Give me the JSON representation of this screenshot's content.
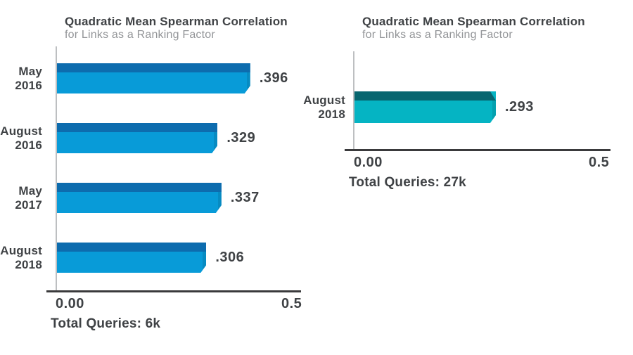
{
  "chart_data": [
    {
      "type": "bar",
      "orientation": "horizontal",
      "title": "Quadratic Mean Spearman Correlation",
      "subtitle": "for Links as a Ranking Factor",
      "categories": [
        "May\n2016",
        "August\n2016",
        "May\n2017",
        "August\n2018"
      ],
      "values": [
        0.396,
        0.329,
        0.337,
        0.306
      ],
      "value_labels": [
        ".396",
        ".329",
        ".337",
        ".306"
      ],
      "xlim": [
        0,
        0.5
      ],
      "tick_labels": [
        "0.00",
        "0.5"
      ],
      "footnote": "Total Queries: 6k",
      "bar_color": "#089bd8",
      "bar_top_color": "#0d6cae",
      "grid": false,
      "legend": false
    },
    {
      "type": "bar",
      "orientation": "horizontal",
      "title": "Quadratic Mean Spearman Correlation",
      "subtitle": "for Links as a Ranking Factor",
      "categories": [
        "August\n2018"
      ],
      "values": [
        0.293
      ],
      "value_labels": [
        ".293"
      ],
      "xlim": [
        0,
        0.5
      ],
      "tick_labels": [
        "0.00",
        "0.5"
      ],
      "footnote": "Total Queries: 27k",
      "bar_color": "#05b4c3",
      "bar_top_color": "#07666f",
      "grid": false,
      "legend": false
    }
  ]
}
